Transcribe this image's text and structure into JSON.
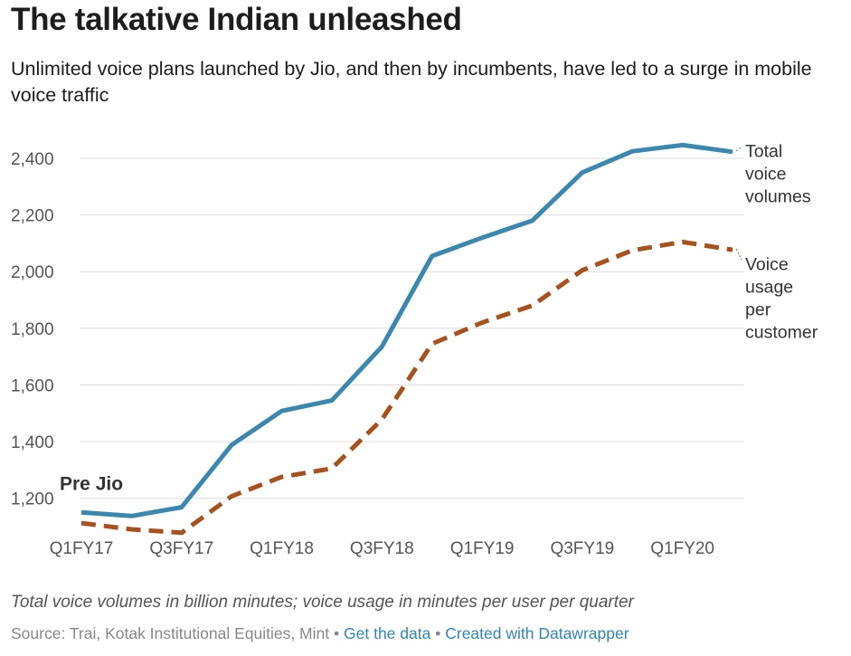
{
  "title": "The talkative Indian unleashed",
  "subtitle": "Unlimited voice plans launched by Jio, and then by incumbents, have led to a surge in mobile voice traffic",
  "notes": "Total voice volumes in billion minutes; voice usage in minutes per user per quarter",
  "source": {
    "text": "Source: Trai, Kotak Institutional Equities, Mint",
    "separator": "•",
    "get_data": "Get the data",
    "created_with": "Created with Datawrapper"
  },
  "chart_data": {
    "type": "line",
    "x": [
      "Q1FY17",
      "Q2FY17",
      "Q3FY17",
      "Q4FY17",
      "Q1FY18",
      "Q2FY18",
      "Q3FY18",
      "Q4FY18",
      "Q1FY19",
      "Q2FY19",
      "Q3FY19",
      "Q4FY19",
      "Q1FY20",
      "Q2FY20"
    ],
    "x_tick_labels": [
      "Q1FY17",
      "Q3FY17",
      "Q1FY18",
      "Q3FY18",
      "Q1FY19",
      "Q3FY19",
      "Q1FY20"
    ],
    "y_ticks": [
      1200,
      1400,
      1600,
      1800,
      2000,
      2200,
      2400
    ],
    "y_tick_labels": [
      "1,200",
      "1,400",
      "1,600",
      "1,800",
      "2,000",
      "2,200",
      "2,400"
    ],
    "ylim": [
      1090,
      2480
    ],
    "grid": true,
    "series": [
      {
        "name": "Total voice volumes",
        "label_lines": [
          "Total",
          "voice",
          "volumes"
        ],
        "color": "#3a88b0",
        "style": "solid",
        "values": [
          1150,
          1137,
          1168,
          1388,
          1508,
          1545,
          1735,
          2055,
          2120,
          2180,
          2350,
          2425,
          2447,
          2423
        ]
      },
      {
        "name": "Voice usage per customer",
        "label_lines": [
          "Voice",
          "usage",
          "per",
          "customer"
        ],
        "color": "#a9511c",
        "style": "dashed",
        "values": [
          1112,
          1090,
          1078,
          1207,
          1275,
          1305,
          1478,
          1745,
          1820,
          1880,
          2005,
          2075,
          2105,
          2077
        ]
      }
    ],
    "annotations": [
      {
        "text": "Pre Jio",
        "x": "Q1FY17",
        "y": 1210
      }
    ]
  }
}
